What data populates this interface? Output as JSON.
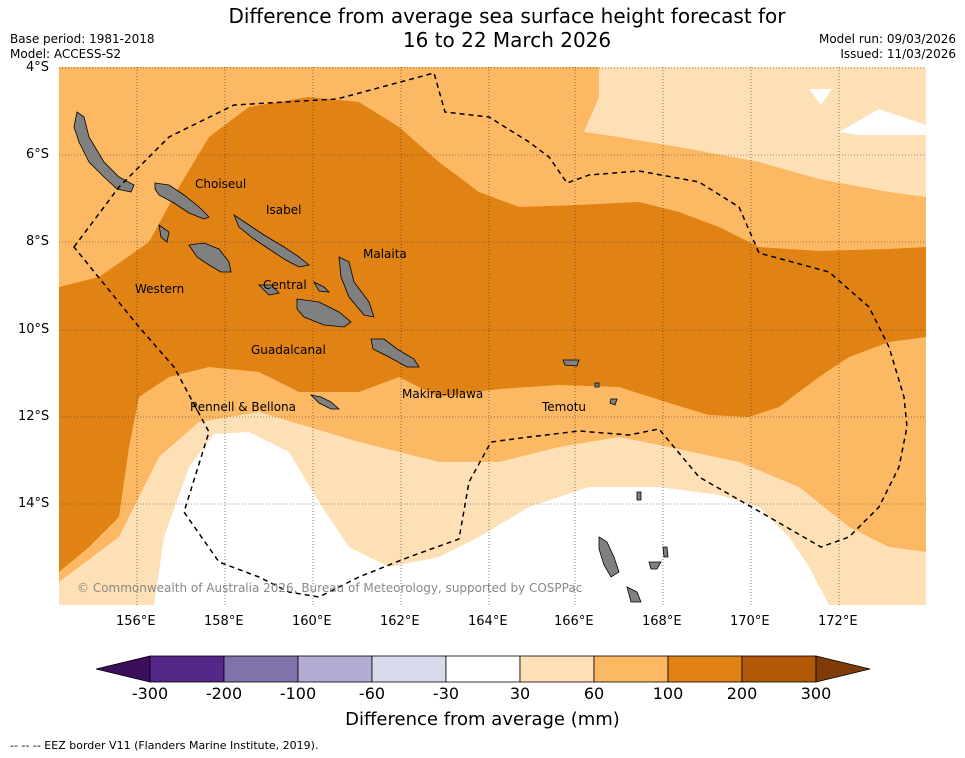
{
  "title_line1": "Difference from average sea surface height forecast for",
  "title_line2": "16 to 22 March 2026",
  "base_period": "Base period: 1981-2018",
  "model": "Model: ACCESS-S2",
  "model_run": "Model run: 09/03/2026",
  "issued": "Issued: 11/03/2026",
  "lat_ticks": [
    "4°S",
    "6°S",
    "8°S",
    "10°S",
    "12°S",
    "14°S"
  ],
  "lon_ticks": [
    "156°E",
    "158°E",
    "160°E",
    "162°E",
    "164°E",
    "166°E",
    "168°E",
    "170°E",
    "172°E"
  ],
  "regions": [
    "Choiseul",
    "Isabel",
    "Malaita",
    "Western",
    "Central",
    "Guadalcanal",
    "Makira-Ulawa",
    "Temotu",
    "Rennell & Bellona"
  ],
  "copyright": "© Commonwealth of Australia 2026, Bureau of Meteorology, supported by COSPPac",
  "colorbar": {
    "labels": [
      "-300",
      "-200",
      "-100",
      "-60",
      "-30",
      "30",
      "60",
      "100",
      "200",
      "300"
    ],
    "colors": [
      "#3b0f5a",
      "#542788",
      "#8073ac",
      "#b2abd2",
      "#d8daeb",
      "#ffffff",
      "#fee0b6",
      "#fdb863",
      "#e08214",
      "#b35806",
      "#7f3b08"
    ],
    "title": "Difference from average (mm)"
  },
  "colors": {
    "c60": "#fee0b6",
    "c100": "#fdb863",
    "c200": "#e08214",
    "land": "#808080"
  },
  "footnote": "--  --  -- EEZ border V11 (Flanders Marine Institute, 2019)."
}
